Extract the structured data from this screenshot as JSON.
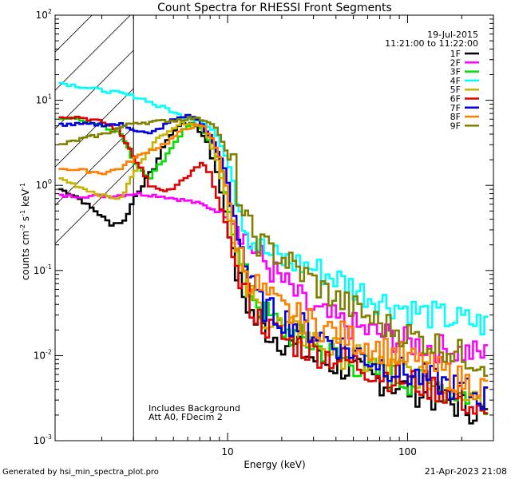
{
  "chart_data": {
    "type": "line",
    "title": "Count Spectra for RHESSI Front Segments",
    "xlabel": "Energy (keV)",
    "ylabel": "counts cm-2 s-1 keV-1",
    "ylabel_parts": {
      "base": "counts cm",
      "e1": "-2",
      "mid1": " s",
      "e2": "-1",
      "mid2": " keV",
      "e3": "-1"
    },
    "x_scale": "log",
    "y_scale": "log",
    "xlim": [
      1.1,
      300
    ],
    "ylim": [
      0.001,
      100
    ],
    "x_ticks": [
      {
        "value": 10,
        "label": "10"
      },
      {
        "value": 100,
        "label": "100"
      }
    ],
    "y_ticks": [
      {
        "value": 100,
        "base": "10",
        "exp": "2"
      },
      {
        "value": 10,
        "base": "10",
        "exp": "1"
      },
      {
        "value": 1,
        "base": "10",
        "exp": "0"
      },
      {
        "value": 0.1,
        "base": "10",
        "exp": "-1"
      },
      {
        "value": 0.01,
        "base": "10",
        "exp": "-2"
      },
      {
        "value": 0.001,
        "base": "10",
        "exp": "-3"
      }
    ],
    "hatched_region": [
      1.1,
      3.0
    ],
    "date": "19-Jul-2015",
    "time_range": "11:21:00 to 11:22:00",
    "annotations": [
      "Includes Background",
      "Att A0, FDecim 2"
    ],
    "footer_left": "Generated by hsi_min_spectra_plot.pro",
    "footer_right": "21-Apr-2023 21:08",
    "series": [
      {
        "name": "1F",
        "color": "#000000",
        "points": [
          [
            1.15,
            0.9
          ],
          [
            1.4,
            0.75
          ],
          [
            1.8,
            0.5
          ],
          [
            2.2,
            0.35
          ],
          [
            2.6,
            0.38
          ],
          [
            3.0,
            0.75
          ],
          [
            3.8,
            1.6
          ],
          [
            4.5,
            3.5
          ],
          [
            5.5,
            5.5
          ],
          [
            6.5,
            5.0
          ],
          [
            7.5,
            3.3
          ],
          [
            8.5,
            1.4
          ],
          [
            9.5,
            0.5
          ],
          [
            10.5,
            0.13
          ],
          [
            12,
            0.05
          ],
          [
            14,
            0.025
          ],
          [
            17,
            0.018
          ],
          [
            22,
            0.013
          ],
          [
            30,
            0.009
          ],
          [
            45,
            0.007
          ],
          [
            70,
            0.005
          ],
          [
            100,
            0.004
          ],
          [
            150,
            0.003
          ],
          [
            200,
            0.0025
          ],
          [
            280,
            0.002
          ]
        ]
      },
      {
        "name": "2F",
        "color": "#ff00ff",
        "points": [
          [
            1.15,
            0.75
          ],
          [
            1.6,
            0.75
          ],
          [
            2.2,
            0.75
          ],
          [
            3.0,
            0.8
          ],
          [
            4,
            0.76
          ],
          [
            5,
            0.7
          ],
          [
            6,
            0.65
          ],
          [
            7,
            0.6
          ],
          [
            8,
            0.53
          ],
          [
            9,
            0.48
          ],
          [
            10,
            0.4
          ],
          [
            11.5,
            0.3
          ],
          [
            13,
            0.2
          ],
          [
            15,
            0.14
          ],
          [
            18,
            0.09
          ],
          [
            22,
            0.06
          ],
          [
            26,
            0.04
          ],
          [
            32,
            0.03
          ],
          [
            40,
            0.025
          ],
          [
            55,
            0.02
          ],
          [
            75,
            0.017
          ],
          [
            100,
            0.014
          ],
          [
            150,
            0.012
          ],
          [
            200,
            0.011
          ],
          [
            280,
            0.01
          ]
        ]
      },
      {
        "name": "3F",
        "color": "#00e000",
        "points": [
          [
            1.15,
            6.2
          ],
          [
            1.5,
            6.0
          ],
          [
            2.0,
            5.0
          ],
          [
            2.5,
            4.0
          ],
          [
            3.0,
            1.8
          ],
          [
            3.6,
            1.25
          ],
          [
            4.3,
            2.0
          ],
          [
            5.0,
            3.3
          ],
          [
            5.6,
            4.5
          ],
          [
            6.2,
            5.5
          ],
          [
            7,
            4.5
          ],
          [
            8,
            3.0
          ],
          [
            9,
            1.5
          ],
          [
            10,
            0.5
          ],
          [
            11,
            0.15
          ],
          [
            13,
            0.06
          ],
          [
            16,
            0.03
          ],
          [
            20,
            0.02
          ],
          [
            26,
            0.015
          ],
          [
            35,
            0.011
          ],
          [
            50,
            0.008
          ],
          [
            70,
            0.006
          ],
          [
            100,
            0.005
          ],
          [
            150,
            0.004
          ],
          [
            200,
            0.0035
          ],
          [
            280,
            0.003
          ]
        ]
      },
      {
        "name": "4F",
        "color": "#00ffff",
        "points": [
          [
            1.15,
            16
          ],
          [
            1.5,
            14.5
          ],
          [
            2,
            13
          ],
          [
            2.5,
            12
          ],
          [
            3,
            11
          ],
          [
            3.5,
            10
          ],
          [
            4,
            8.5
          ],
          [
            4.5,
            8.0
          ],
          [
            5,
            7.0
          ],
          [
            5.5,
            6.5
          ],
          [
            6,
            6.3
          ],
          [
            6.5,
            6.0
          ],
          [
            7,
            5.7
          ],
          [
            8,
            4.5
          ],
          [
            9,
            3.0
          ],
          [
            10,
            1.7
          ],
          [
            11,
            0.8
          ],
          [
            12,
            0.4
          ],
          [
            13,
            0.25
          ],
          [
            15,
            0.18
          ],
          [
            17,
            0.15
          ],
          [
            20,
            0.13
          ],
          [
            24,
            0.12
          ],
          [
            28,
            0.11
          ],
          [
            35,
            0.09
          ],
          [
            45,
            0.07
          ],
          [
            60,
            0.05
          ],
          [
            80,
            0.04
          ],
          [
            100,
            0.035
          ],
          [
            130,
            0.03
          ],
          [
            170,
            0.027
          ],
          [
            220,
            0.025
          ],
          [
            280,
            0.022
          ]
        ]
      },
      {
        "name": "5F",
        "color": "#c8b400",
        "points": [
          [
            1.15,
            1.2
          ],
          [
            1.5,
            0.95
          ],
          [
            2,
            0.75
          ],
          [
            2.5,
            0.7
          ],
          [
            3,
            1.5
          ],
          [
            3.5,
            2.5
          ],
          [
            4,
            3.5
          ],
          [
            4.6,
            4.5
          ],
          [
            5.2,
            5.2
          ],
          [
            6,
            5.5
          ],
          [
            6.8,
            5.0
          ],
          [
            7.6,
            3.8
          ],
          [
            8.5,
            2.0
          ],
          [
            9.5,
            0.8
          ],
          [
            10.5,
            0.2
          ],
          [
            12,
            0.07
          ],
          [
            14,
            0.04
          ],
          [
            17,
            0.025
          ],
          [
            21,
            0.02
          ],
          [
            26,
            0.017
          ],
          [
            33,
            0.013
          ],
          [
            45,
            0.01
          ],
          [
            60,
            0.008
          ],
          [
            80,
            0.007
          ],
          [
            110,
            0.006
          ],
          [
            150,
            0.005
          ],
          [
            200,
            0.004
          ],
          [
            280,
            0.0035
          ]
        ]
      },
      {
        "name": "6F",
        "color": "#e00000",
        "points": [
          [
            1.15,
            6.5
          ],
          [
            1.5,
            6.3
          ],
          [
            2,
            5.5
          ],
          [
            2.4,
            4.5
          ],
          [
            2.8,
            2.7
          ],
          [
            3.2,
            1.6
          ],
          [
            3.6,
            1.0
          ],
          [
            4.2,
            0.85
          ],
          [
            4.8,
            0.9
          ],
          [
            5.4,
            1.1
          ],
          [
            6,
            1.3
          ],
          [
            6.5,
            1.6
          ],
          [
            7,
            1.8
          ],
          [
            7.6,
            1.5
          ],
          [
            8.2,
            1.0
          ],
          [
            9,
            0.5
          ],
          [
            10,
            0.25
          ],
          [
            11,
            0.09
          ],
          [
            12.5,
            0.05
          ],
          [
            14,
            0.03
          ],
          [
            17,
            0.02
          ],
          [
            21,
            0.015
          ],
          [
            27,
            0.012
          ],
          [
            35,
            0.01
          ],
          [
            50,
            0.008
          ],
          [
            70,
            0.006
          ],
          [
            100,
            0.005
          ],
          [
            150,
            0.004
          ],
          [
            200,
            0.003
          ],
          [
            280,
            0.0015
          ]
        ]
      },
      {
        "name": "7F",
        "color": "#0000e0",
        "points": [
          [
            1.15,
            5.2
          ],
          [
            1.5,
            5.2
          ],
          [
            2,
            5.2
          ],
          [
            2.5,
            5.2
          ],
          [
            3,
            4.5
          ],
          [
            3.6,
            4.0
          ],
          [
            4.2,
            4.8
          ],
          [
            4.8,
            5.8
          ],
          [
            5.5,
            6.5
          ],
          [
            6.2,
            6.5
          ],
          [
            7,
            5.2
          ],
          [
            7.8,
            3.8
          ],
          [
            8.6,
            2.5
          ],
          [
            9.4,
            1.6
          ],
          [
            10.3,
            0.7
          ],
          [
            11.2,
            0.3
          ],
          [
            12.3,
            0.12
          ],
          [
            13.5,
            0.06
          ],
          [
            15,
            0.04
          ],
          [
            18,
            0.03
          ],
          [
            22,
            0.025
          ],
          [
            28,
            0.02
          ],
          [
            36,
            0.015
          ],
          [
            50,
            0.011
          ],
          [
            70,
            0.008
          ],
          [
            100,
            0.006
          ],
          [
            140,
            0.005
          ],
          [
            200,
            0.004
          ],
          [
            280,
            0.003
          ]
        ]
      },
      {
        "name": "8F",
        "color": "#ff8000",
        "points": [
          [
            1.15,
            1.6
          ],
          [
            1.5,
            1.5
          ],
          [
            2,
            1.4
          ],
          [
            2.5,
            1.6
          ],
          [
            3,
            2.1
          ],
          [
            3.5,
            2.5
          ],
          [
            4,
            2.8
          ],
          [
            4.5,
            3.2
          ],
          [
            5,
            3.8
          ],
          [
            5.5,
            4.4
          ],
          [
            6,
            4.8
          ],
          [
            6.5,
            5.0
          ],
          [
            7.2,
            4.8
          ],
          [
            8,
            3.5
          ],
          [
            8.8,
            2.2
          ],
          [
            9.6,
            1.0
          ],
          [
            10.5,
            0.35
          ],
          [
            11.5,
            0.15
          ],
          [
            13,
            0.08
          ],
          [
            15,
            0.06
          ],
          [
            18,
            0.04
          ],
          [
            22,
            0.03
          ],
          [
            28,
            0.025
          ],
          [
            36,
            0.02
          ],
          [
            50,
            0.015
          ],
          [
            70,
            0.012
          ],
          [
            100,
            0.009
          ],
          [
            140,
            0.007
          ],
          [
            200,
            0.005
          ],
          [
            280,
            0.004
          ]
        ]
      },
      {
        "name": "9F",
        "color": "#808000",
        "points": [
          [
            1.15,
            3.0
          ],
          [
            1.5,
            3.5
          ],
          [
            2,
            4.0
          ],
          [
            2.5,
            4.8
          ],
          [
            3,
            5.5
          ],
          [
            3.5,
            5.5
          ],
          [
            4,
            5.6
          ],
          [
            4.5,
            5.8
          ],
          [
            5,
            5.8
          ],
          [
            5.5,
            6.0
          ],
          [
            6,
            6.2
          ],
          [
            6.5,
            6.0
          ],
          [
            7,
            6.0
          ],
          [
            8,
            5.5
          ],
          [
            8.8,
            4.0
          ],
          [
            9.6,
            2.5
          ],
          [
            10.4,
            1.6
          ],
          [
            11.2,
            0.8
          ],
          [
            12,
            0.45
          ],
          [
            13,
            0.3
          ],
          [
            14.5,
            0.22
          ],
          [
            16,
            0.18
          ],
          [
            18,
            0.16
          ],
          [
            21,
            0.13
          ],
          [
            24,
            0.1
          ],
          [
            28,
            0.08
          ],
          [
            33,
            0.06
          ],
          [
            40,
            0.045
          ],
          [
            50,
            0.035
          ],
          [
            65,
            0.025
          ],
          [
            85,
            0.02
          ],
          [
            110,
            0.016
          ],
          [
            150,
            0.013
          ],
          [
            200,
            0.01
          ],
          [
            280,
            0.008
          ]
        ]
      }
    ]
  }
}
